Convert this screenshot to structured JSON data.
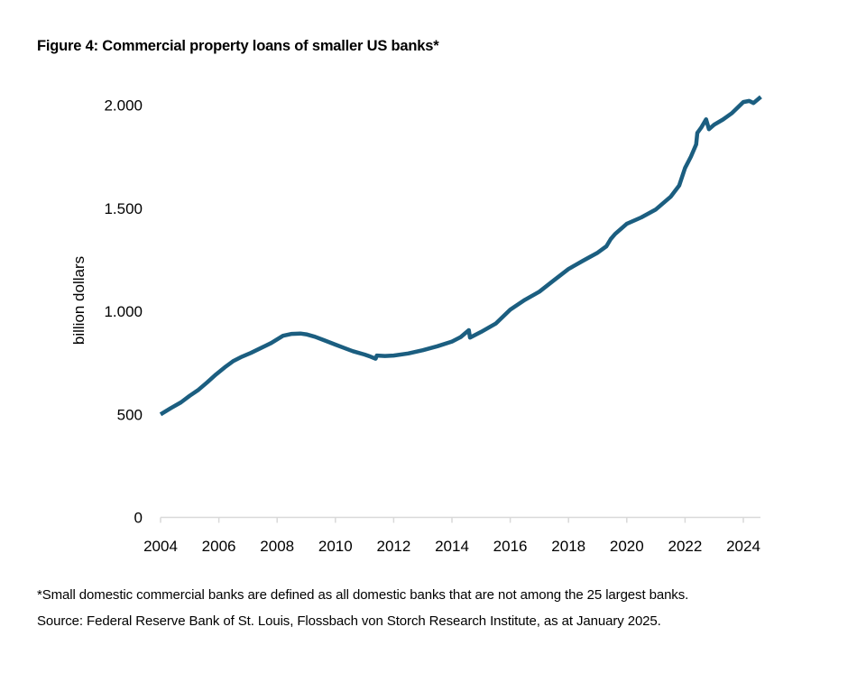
{
  "figure": {
    "title": "Figure 4: Commercial property loans of smaller US banks*",
    "footnote": "*Small domestic commercial banks are defined as all domestic banks that are not among the 25 largest banks.",
    "source": "Source: Federal Reserve Bank of St. Louis, Flossbach von Storch Research Institute, as at January 2025."
  },
  "colors": {
    "line": "#1b5e80",
    "axis": "#d9d9d9",
    "text": "#000000"
  },
  "chart_data": {
    "type": "line",
    "title": "Commercial property loans of smaller US banks*",
    "xlabel": "",
    "ylabel": "billion dollars",
    "xlim": [
      2004,
      2024.6
    ],
    "ylim": [
      0,
      2000
    ],
    "grid": false,
    "legend": "none",
    "x_ticks": [
      2004,
      2006,
      2008,
      2010,
      2012,
      2014,
      2016,
      2018,
      2020,
      2022,
      2024
    ],
    "x_tick_labels": [
      "2004",
      "2006",
      "2008",
      "2010",
      "2012",
      "2014",
      "2016",
      "2018",
      "2020",
      "2022",
      "2024"
    ],
    "y_ticks": [
      0,
      500,
      1000,
      1500,
      2000
    ],
    "y_tick_labels": [
      "0",
      "500",
      "1.000",
      "1.500",
      "2.000"
    ],
    "series": [
      {
        "name": "Commercial property loans (billion dollars)",
        "x": [
          2004.0,
          2004.35,
          2004.7,
          2005.0,
          2005.3,
          2005.6,
          2005.9,
          2006.2,
          2006.5,
          2006.8,
          2007.1,
          2007.45,
          2007.8,
          2008.2,
          2008.5,
          2008.8,
          2009.0,
          2009.3,
          2009.6,
          2010.0,
          2010.3,
          2010.6,
          2011.0,
          2011.2,
          2011.38,
          2011.42,
          2011.7,
          2012.0,
          2012.5,
          2013.0,
          2013.5,
          2014.0,
          2014.3,
          2014.58,
          2014.62,
          2015.0,
          2015.5,
          2016.0,
          2016.5,
          2017.0,
          2017.5,
          2018.0,
          2018.5,
          2019.0,
          2019.3,
          2019.45,
          2019.6,
          2020.0,
          2020.5,
          2021.0,
          2021.5,
          2021.8,
          2022.0,
          2022.2,
          2022.38,
          2022.42,
          2022.55,
          2022.72,
          2022.82,
          2023.0,
          2023.3,
          2023.6,
          2024.0,
          2024.2,
          2024.35,
          2024.6
        ],
        "y": [
          500,
          530,
          558,
          590,
          619,
          655,
          693,
          728,
          759,
          780,
          798,
          822,
          846,
          881,
          890,
          892,
          888,
          876,
          860,
          838,
          822,
          806,
          790,
          780,
          770,
          785,
          783,
          785,
          795,
          811,
          830,
          853,
          875,
          908,
          872,
          900,
          940,
          1008,
          1055,
          1095,
          1150,
          1205,
          1245,
          1284,
          1315,
          1350,
          1375,
          1424,
          1455,
          1494,
          1555,
          1610,
          1695,
          1750,
          1809,
          1865,
          1890,
          1931,
          1883,
          1905,
          1930,
          1960,
          2015,
          2020,
          2010,
          2040
        ]
      }
    ]
  }
}
